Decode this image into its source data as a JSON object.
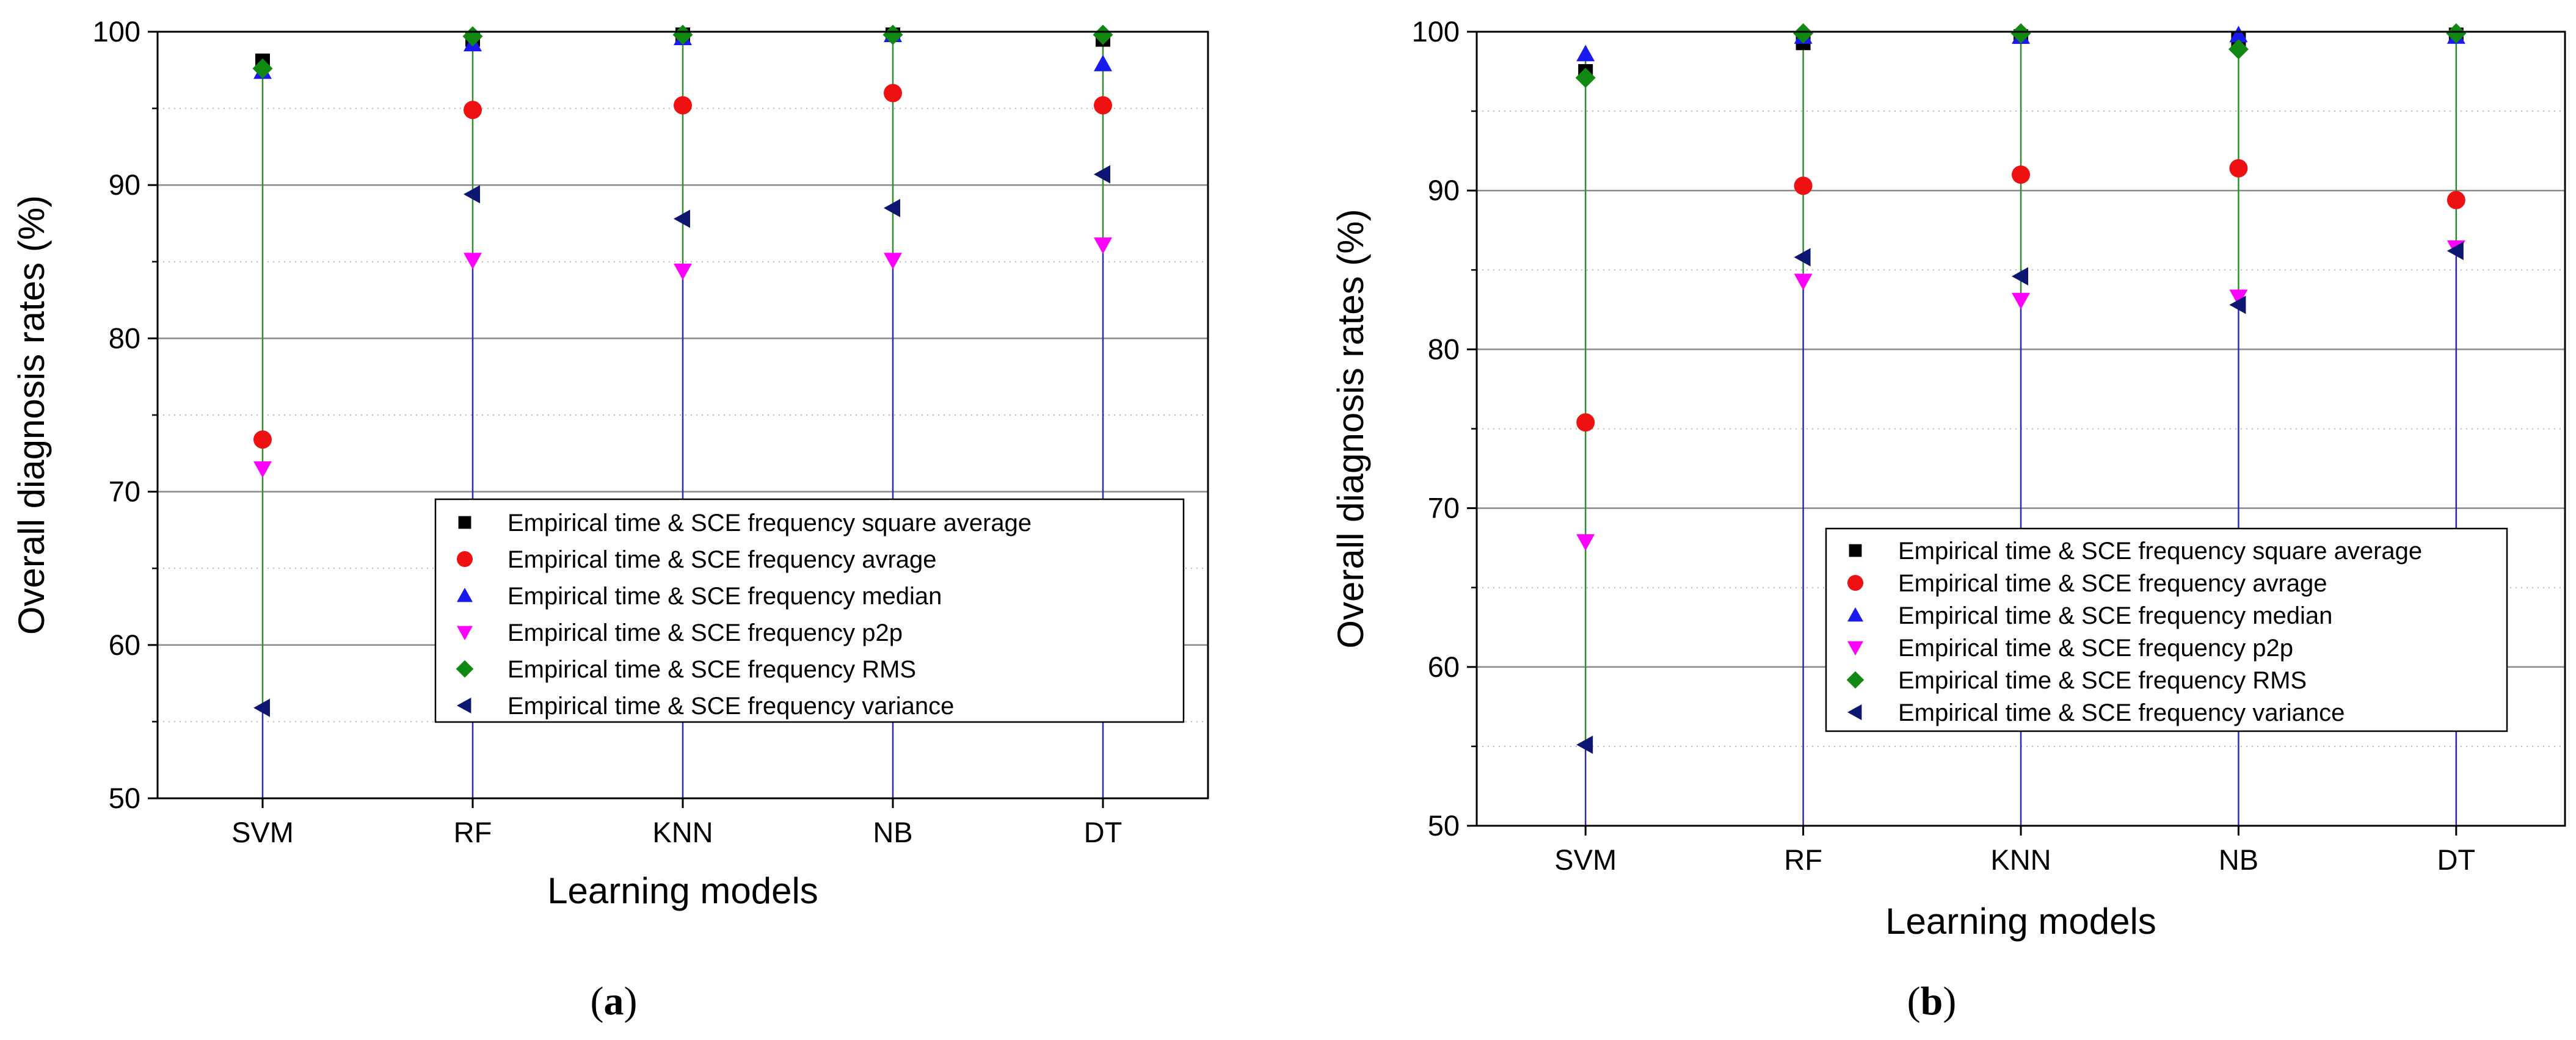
{
  "chart_data": [
    {
      "type": "scatter",
      "panel_label": "a",
      "xlabel": "Learning models",
      "ylabel": "Overall diagnosis rates (%)",
      "categories": [
        "SVM",
        "RF",
        "KNN",
        "NB",
        "DT"
      ],
      "ylim": [
        50,
        100
      ],
      "yticks": [
        50,
        60,
        70,
        80,
        90,
        100
      ],
      "grid": true,
      "legend_position": "lower-right",
      "series": [
        {
          "name": "Empirical time & SCE frequency square average",
          "marker": "square",
          "color": "#000000",
          "values": [
            98.1,
            99.5,
            99.8,
            99.8,
            99.5
          ]
        },
        {
          "name": "Empirical time & SCE frequency avrage",
          "marker": "circle",
          "color": "#ee1111",
          "values": [
            73.4,
            94.9,
            95.2,
            96.0,
            95.2
          ]
        },
        {
          "name": "Empirical time & SCE frequency median",
          "marker": "triangle-up",
          "color": "#1a1aee",
          "values": [
            97.4,
            99.2,
            99.6,
            99.8,
            97.9
          ]
        },
        {
          "name": "Empirical time & SCE frequency p2p",
          "marker": "triangle-down",
          "color": "#ff00ff",
          "values": [
            71.5,
            85.1,
            84.4,
            85.1,
            86.1
          ]
        },
        {
          "name": "Empirical time & SCE frequency RMS",
          "marker": "diamond",
          "color": "#118811",
          "values": [
            97.6,
            99.7,
            99.8,
            99.8,
            99.8
          ]
        },
        {
          "name": "Empirical time & SCE frequency variance",
          "marker": "triangle-left",
          "color": "#0d1670",
          "values": [
            55.9,
            89.4,
            87.8,
            88.5,
            90.7
          ]
        }
      ]
    },
    {
      "type": "scatter",
      "panel_label": "b",
      "xlabel": "Learning models",
      "ylabel": "Overall diagnosis rates (%)",
      "categories": [
        "SVM",
        "RF",
        "KNN",
        "NB",
        "DT"
      ],
      "ylim": [
        50,
        100
      ],
      "yticks": [
        50,
        60,
        70,
        80,
        90,
        100
      ],
      "grid": true,
      "legend_position": "lower-right",
      "series": [
        {
          "name": "Empirical time & SCE frequency square average",
          "marker": "square",
          "color": "#000000",
          "values": [
            97.5,
            99.3,
            99.7,
            99.5,
            99.8
          ]
        },
        {
          "name": "Empirical time & SCE frequency avrage",
          "marker": "circle",
          "color": "#ee1111",
          "values": [
            75.4,
            90.3,
            91.0,
            91.4,
            89.4
          ]
        },
        {
          "name": "Empirical time & SCE frequency median",
          "marker": "triangle-up",
          "color": "#1a1aee",
          "values": [
            98.6,
            99.7,
            99.7,
            99.8,
            99.7
          ]
        },
        {
          "name": "Empirical time & SCE frequency p2p",
          "marker": "triangle-down",
          "color": "#ff00ff",
          "values": [
            67.9,
            84.3,
            83.1,
            83.3,
            86.4
          ]
        },
        {
          "name": "Empirical time & SCE frequency RMS",
          "marker": "diamond",
          "color": "#118811",
          "values": [
            97.1,
            99.9,
            99.9,
            98.9,
            99.9
          ]
        },
        {
          "name": "Empirical time & SCE frequency variance",
          "marker": "triangle-left",
          "color": "#0d1670",
          "values": [
            55.1,
            85.8,
            84.6,
            82.8,
            86.2
          ]
        }
      ]
    }
  ],
  "captions": [
    "a",
    "b"
  ]
}
